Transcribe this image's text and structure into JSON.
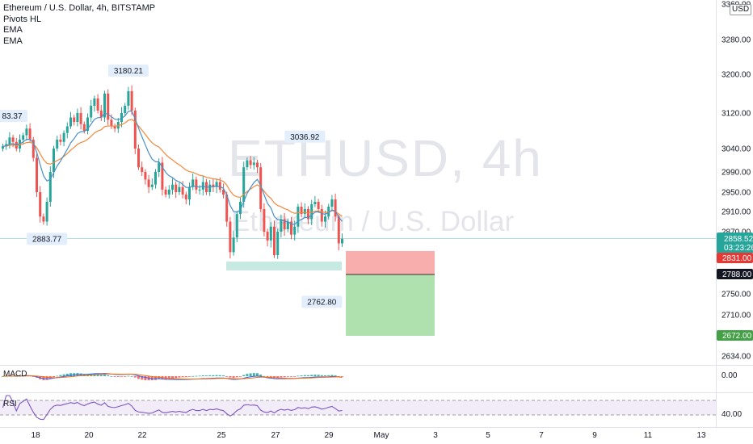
{
  "legend": {
    "symbol_title": "Ethereum / U.S. Dollar, 4h, BITSTAMP",
    "indicators": [
      "Pivots HL",
      "EMA",
      "EMA"
    ]
  },
  "watermark": {
    "ticker": "ETHUSD, 4h",
    "name": "Ethereum / U.S. Dollar"
  },
  "currency_button": "USD",
  "panes": {
    "macd_label": "MACD",
    "rsi_label": "RSI",
    "macd_value": "0.00",
    "rsi_value": "40.00"
  },
  "colors": {
    "up": "#26a69a",
    "down": "#ef5350",
    "ema_fast": "#4a90c8",
    "ema_slow": "#f5873a",
    "stop_zone": "#f8a5a5",
    "target_zone": "#a5dea5",
    "support_zone": "#b8e3da",
    "rsi": "#7e57c2",
    "price_label_bg": "#26a69a",
    "stop_label_bg": "#e53935",
    "entry_label_bg": "#131722",
    "target_label_bg": "#43a047"
  },
  "chart_data": {
    "type": "candlestick",
    "symbol": "ETHUSD",
    "interval": "4h",
    "exchange": "BITSTAMP",
    "price_axis": {
      "ticks": [
        3360,
        3280,
        3200,
        3120,
        3040,
        2990,
        2950,
        2910,
        2870,
        2830,
        2790,
        2750,
        2710,
        2672,
        2634
      ],
      "tick_labels": [
        "3360.00",
        "3280.00",
        "3200.00",
        "3120.00",
        "3040.00",
        "2990.00",
        "2950.00",
        "2910.00",
        "2870.00",
        "2830.00",
        "2790.00",
        "2750.00",
        "2710.00",
        "2672.00",
        "2634.00"
      ]
    },
    "time_axis": {
      "labels": [
        "18",
        "20",
        "22",
        "25",
        "27",
        "29",
        "May",
        "3",
        "5",
        "7",
        "9",
        "11",
        "13"
      ]
    },
    "pivot_labels": [
      {
        "text": "3180.21",
        "price": 3180.21,
        "bar": 37,
        "kind": "high"
      },
      {
        "text": "3036.92",
        "price": 3036.92,
        "bar": 89,
        "kind": "high"
      },
      {
        "text": "2883.77",
        "price": 2883.77,
        "bar": 13,
        "kind": "low"
      },
      {
        "text": "2762.80",
        "price": 2762.8,
        "bar": 94,
        "kind": "low"
      },
      {
        "text": "83.37",
        "price": 3083.37,
        "bar": 0,
        "kind": "high"
      }
    ],
    "current_price": {
      "value": "2858.52",
      "countdown": "03:23:26"
    },
    "position": {
      "stop": "2831.00",
      "entry": "2788.00",
      "target": "2672.00"
    },
    "series_closes": [
      3045,
      3050,
      3065,
      3055,
      3040,
      3060,
      3070,
      3085,
      3060,
      3020,
      2950,
      2900,
      2890,
      2930,
      2990,
      3040,
      3060,
      3055,
      3075,
      3090,
      3110,
      3100,
      3120,
      3095,
      3080,
      3110,
      3135,
      3150,
      3125,
      3110,
      3160,
      3105,
      3090,
      3085,
      3100,
      3120,
      3135,
      3165,
      3125,
      3040,
      3000,
      2990,
      2975,
      2960,
      2965,
      2990,
      3010,
      2955,
      2945,
      2955,
      2965,
      2950,
      2960,
      2945,
      2935,
      2960,
      2975,
      2955,
      2955,
      2970,
      2950,
      2965,
      2960,
      2970,
      2955,
      2945,
      2890,
      2835,
      2860,
      2905,
      2930,
      3000,
      3015,
      3005,
      3010,
      3000,
      2915,
      2870,
      2855,
      2880,
      2830,
      2870,
      2895,
      2875,
      2890,
      2865,
      2880,
      2920,
      2905,
      2915,
      2895,
      2925,
      2930,
      2915,
      2890,
      2900,
      2920,
      2935,
      2900,
      2850,
      2858
    ]
  }
}
